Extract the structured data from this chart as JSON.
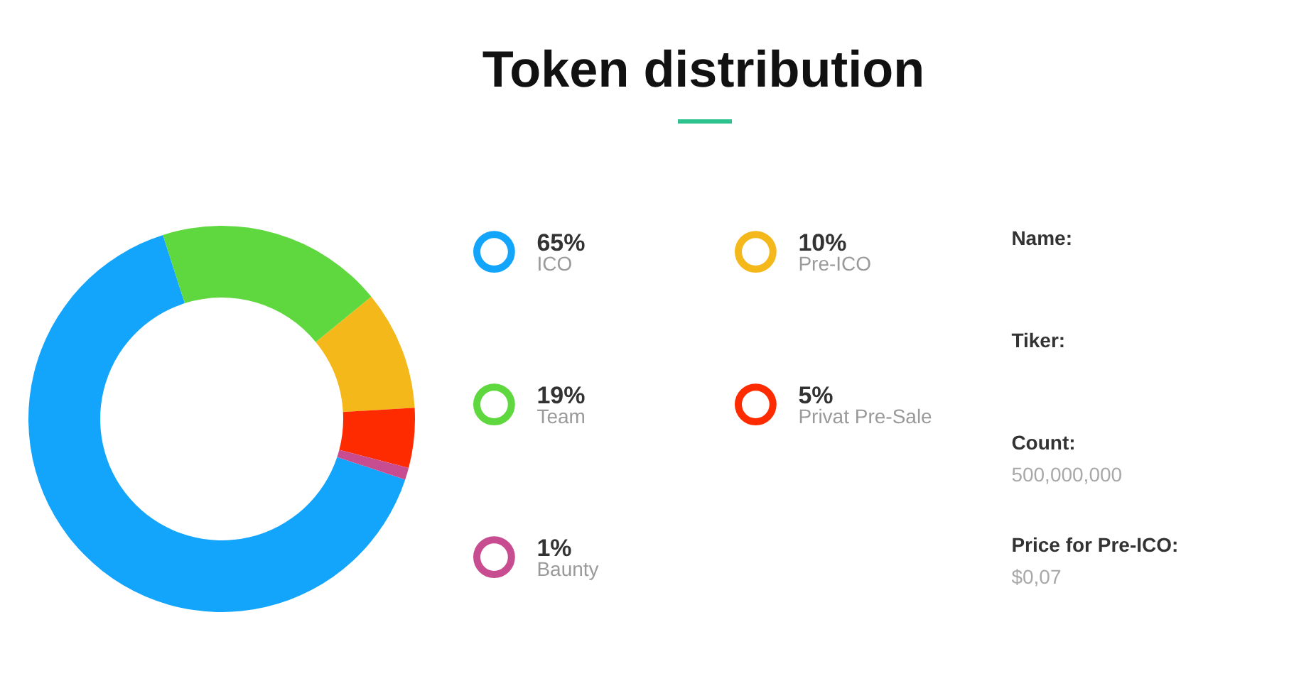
{
  "chart_data": [
    {
      "type": "donut",
      "title": "Token distribution",
      "categories": [
        "ICO",
        "Pre-ICO",
        "Team",
        "Privat Pre-Sale",
        "Baunty"
      ],
      "values": [
        65,
        10,
        19,
        5,
        1
      ],
      "colors": [
        "#12a5fb",
        "#f4b81a",
        "#5fd83f",
        "#ff2b00",
        "#c84d90"
      ],
      "value_labels": [
        "65%",
        "10%",
        "19%",
        "5%",
        "1%"
      ],
      "legend": "right"
    },
    {
      "type": "other",
      "annotations": [
        "Name:",
        "Tiker:",
        "Count:",
        "500,000,000",
        "Price for Pre-ICO:",
        "$0,07"
      ]
    }
  ]
}
